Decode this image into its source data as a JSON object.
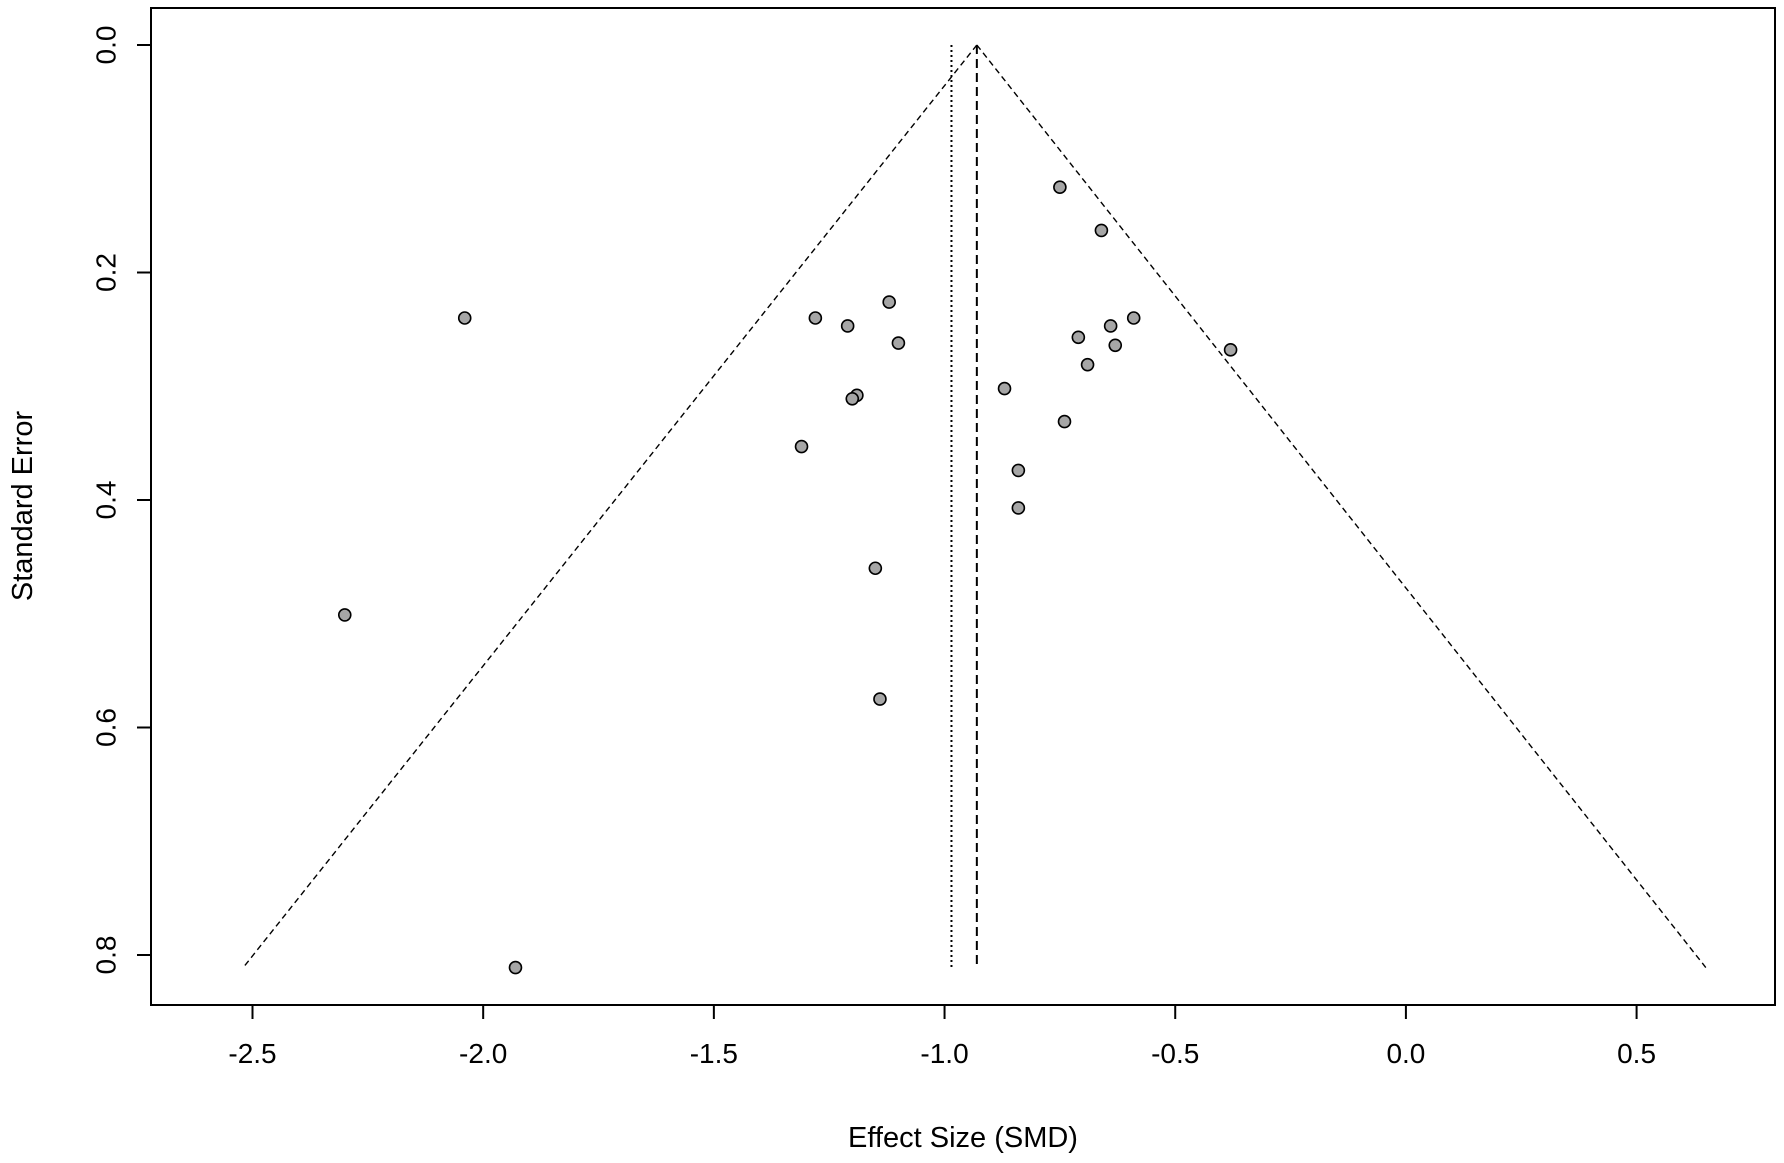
{
  "chart_data": {
    "type": "scatter",
    "title": "",
    "xlabel": "Effect Size (SMD)",
    "ylabel": "Standard Error",
    "xlim": [
      -2.72,
      0.8
    ],
    "ylim": [
      0.0,
      0.843
    ],
    "y_reversed": true,
    "x_ticks": [
      -2.5,
      -2.0,
      -1.5,
      -1.0,
      -0.5,
      0.0,
      0.5
    ],
    "x_tick_labels": [
      "-2.5",
      "-2.0",
      "-1.5",
      "-1.0",
      "-0.5",
      "0.0",
      "0.5"
    ],
    "y_ticks": [
      0.0,
      0.2,
      0.4,
      0.6,
      0.8
    ],
    "y_tick_labels": [
      "0.0",
      "0.2",
      "0.4",
      "0.6",
      "0.8"
    ],
    "grid": false,
    "point_color": "#a6a6a6",
    "point_stroke": "#000000",
    "points": [
      {
        "x": -0.75,
        "y": 0.125
      },
      {
        "x": -0.66,
        "y": 0.163
      },
      {
        "x": -2.04,
        "y": 0.24
      },
      {
        "x": -1.28,
        "y": 0.24
      },
      {
        "x": -1.21,
        "y": 0.247
      },
      {
        "x": -1.12,
        "y": 0.226
      },
      {
        "x": -1.1,
        "y": 0.262
      },
      {
        "x": -0.71,
        "y": 0.257
      },
      {
        "x": -0.64,
        "y": 0.247
      },
      {
        "x": -0.59,
        "y": 0.24
      },
      {
        "x": -0.63,
        "y": 0.264
      },
      {
        "x": -0.69,
        "y": 0.281
      },
      {
        "x": -0.38,
        "y": 0.268
      },
      {
        "x": -0.87,
        "y": 0.302
      },
      {
        "x": -1.19,
        "y": 0.308
      },
      {
        "x": -1.2,
        "y": 0.311
      },
      {
        "x": -0.74,
        "y": 0.331
      },
      {
        "x": -1.31,
        "y": 0.353
      },
      {
        "x": -0.84,
        "y": 0.374
      },
      {
        "x": -0.84,
        "y": 0.407
      },
      {
        "x": -1.15,
        "y": 0.46
      },
      {
        "x": -2.3,
        "y": 0.501
      },
      {
        "x": -1.14,
        "y": 0.575
      },
      {
        "x": -1.93,
        "y": 0.811
      }
    ],
    "pooled_estimate": -0.93,
    "adjusted_estimate": -0.985,
    "funnel": {
      "apex_x": -0.93,
      "apex_y": 0.0,
      "left_x": -2.52,
      "right_x": 0.65,
      "base_y": 0.811
    }
  }
}
